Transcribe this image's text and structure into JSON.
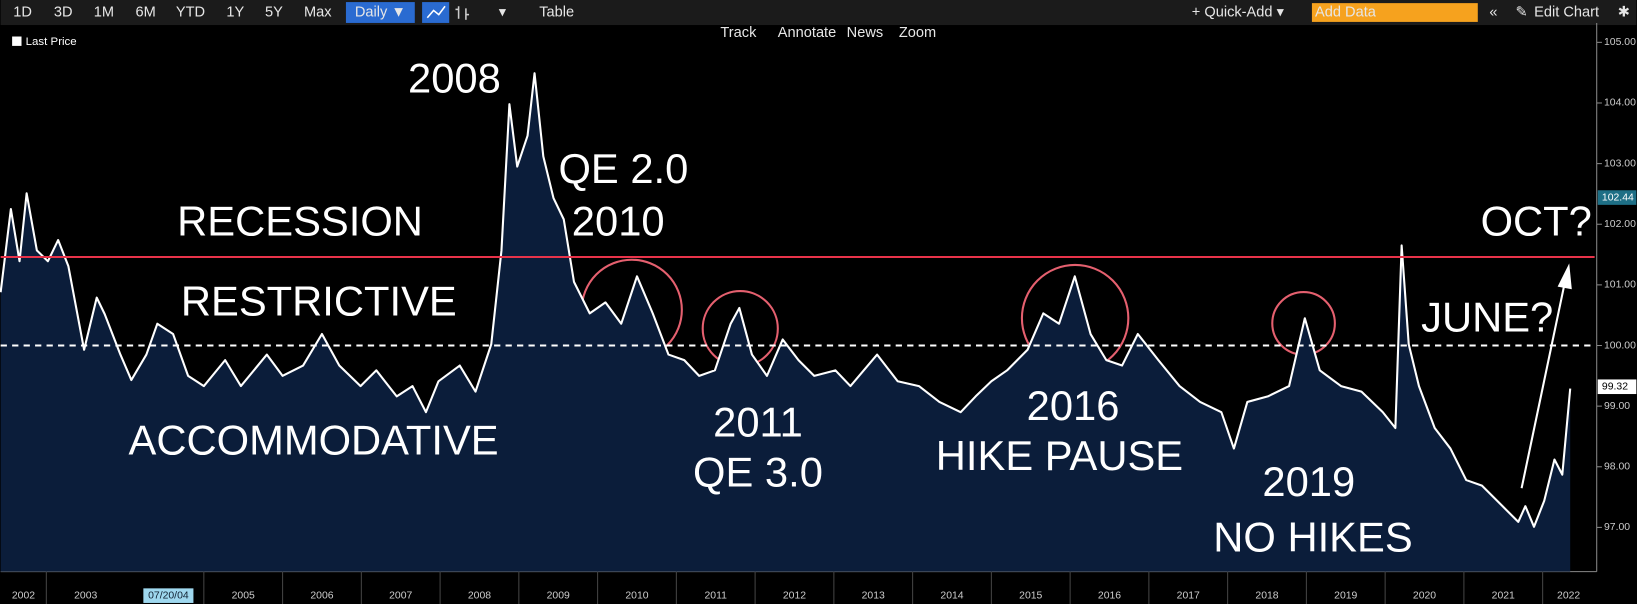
{
  "toolbar": {
    "periods": [
      "1D",
      "3D",
      "1M",
      "6M",
      "YTD",
      "1Y",
      "5Y",
      "Max"
    ],
    "frequency": "Daily ▼",
    "table": "Table",
    "quick_add": "+ Quick-Add ▾",
    "add_data": "Add Data",
    "edit_chart": "Edit Chart",
    "tools": [
      "Track",
      "Annotate",
      "News",
      "Zoom"
    ]
  },
  "chart_data": {
    "type": "area",
    "background": "#000000",
    "area_color": "#0b1d3a",
    "series": [
      {
        "name": "Last Price",
        "color": "#ffffff",
        "x": [
          2002.42,
          2002.55,
          2002.66,
          2002.75,
          2002.88,
          2003.02,
          2003.15,
          2003.28,
          2003.48,
          2003.64,
          2003.74,
          2003.94,
          2004.08,
          2004.27,
          2004.41,
          2004.61,
          2004.8,
          2005.0,
          2005.27,
          2005.47,
          2005.8,
          2006.0,
          2006.26,
          2006.5,
          2006.72,
          2006.99,
          2007.19,
          2007.45,
          2007.65,
          2007.82,
          2007.98,
          2008.25,
          2008.45,
          2008.65,
          2008.78,
          2008.88,
          2008.98,
          2009.11,
          2009.2,
          2009.31,
          2009.44,
          2009.57,
          2009.7,
          2009.9,
          2010.1,
          2010.3,
          2010.5,
          2010.7,
          2010.9,
          2011.1,
          2011.29,
          2011.49,
          2011.69,
          2011.8,
          2011.96,
          2012.15,
          2012.35,
          2012.55,
          2012.75,
          2013.02,
          2013.21,
          2013.55,
          2013.81,
          2014.08,
          2014.34,
          2014.61,
          2014.8,
          2015.0,
          2015.2,
          2015.46,
          2015.66,
          2015.86,
          2016.06,
          2016.26,
          2016.46,
          2016.66,
          2016.86,
          2017.12,
          2017.39,
          2017.65,
          2017.92,
          2018.08,
          2018.25,
          2018.51,
          2018.78,
          2018.98,
          2019.17,
          2019.44,
          2019.7,
          2019.97,
          2020.13,
          2020.21,
          2020.3,
          2020.43,
          2020.63,
          2020.83,
          2021.03,
          2021.23,
          2021.49,
          2021.69,
          2021.78,
          2021.89,
          2022.02,
          2022.15,
          2022.25,
          2022.35
        ],
        "values": [
          100.88,
          102.25,
          101.39,
          102.51,
          101.57,
          101.39,
          101.74,
          101.31,
          99.93,
          100.79,
          100.52,
          99.85,
          99.43,
          99.85,
          100.36,
          100.19,
          99.5,
          99.33,
          99.76,
          99.33,
          99.85,
          99.5,
          99.67,
          100.19,
          99.67,
          99.33,
          99.59,
          99.16,
          99.33,
          98.9,
          99.41,
          99.67,
          99.24,
          100.02,
          101.57,
          103.98,
          102.95,
          103.46,
          104.49,
          103.12,
          102.43,
          102.08,
          101.05,
          100.53,
          100.71,
          100.36,
          101.14,
          100.53,
          99.85,
          99.76,
          99.5,
          99.59,
          100.36,
          100.62,
          99.85,
          99.5,
          100.1,
          99.76,
          99.5,
          99.59,
          99.33,
          99.85,
          99.41,
          99.33,
          99.07,
          98.9,
          99.16,
          99.41,
          99.59,
          99.93,
          100.53,
          100.36,
          101.14,
          100.19,
          99.76,
          99.67,
          100.19,
          99.76,
          99.33,
          99.07,
          98.9,
          98.3,
          99.07,
          99.16,
          99.33,
          100.45,
          99.59,
          99.33,
          99.24,
          98.9,
          98.64,
          101.65,
          100.02,
          99.33,
          98.64,
          98.3,
          97.78,
          97.69,
          97.35,
          97.09,
          97.35,
          97.01,
          97.44,
          98.12,
          97.87,
          99.29
        ]
      }
    ],
    "xlim": [
      2002.42,
      2022.66
    ],
    "xticks": [
      2002,
      2003,
      2005,
      2006,
      2007,
      2008,
      2009,
      2010,
      2011,
      2012,
      2013,
      2014,
      2015,
      2016,
      2017,
      2018,
      2019,
      2020,
      2021,
      2022
    ],
    "cursor": {
      "x": 2004.55,
      "label": "07/20/04"
    },
    "ylim": [
      96.27,
      105.32
    ],
    "yticks": [
      {
        "value": 97,
        "label": "97.00"
      },
      {
        "value": 98,
        "label": "98.00"
      },
      {
        "value": 99,
        "label": "99.00"
      },
      {
        "value": 100,
        "label": "100.00"
      },
      {
        "value": 101,
        "label": "101.00"
      },
      {
        "value": 102,
        "label": "102.00"
      },
      {
        "value": 103,
        "label": "103.00"
      },
      {
        "value": 104,
        "label": "104.00"
      },
      {
        "value": 105,
        "label": "105.00"
      }
    ],
    "reference_lines": [
      {
        "value": 101.46,
        "color": "#e8334a",
        "style": "solid"
      },
      {
        "value": 100,
        "color": "#ffffff",
        "style": "dashed"
      }
    ],
    "price_labels": [
      {
        "value": 102.44,
        "label": "102.44",
        "color": "#1e6f86"
      },
      {
        "value": 99.32,
        "label": "99.32",
        "color": "#ffffff"
      }
    ],
    "annotations": [
      "2008",
      "QE 2.0",
      "2010",
      "RECESSION",
      "RESTRICTIVE",
      "ACCOMMODATIVE",
      "2011",
      "QE 3.0",
      "2016",
      "HIKE PAUSE",
      "2019",
      "NO HIKES",
      "OCT?",
      "JUNE?"
    ]
  }
}
